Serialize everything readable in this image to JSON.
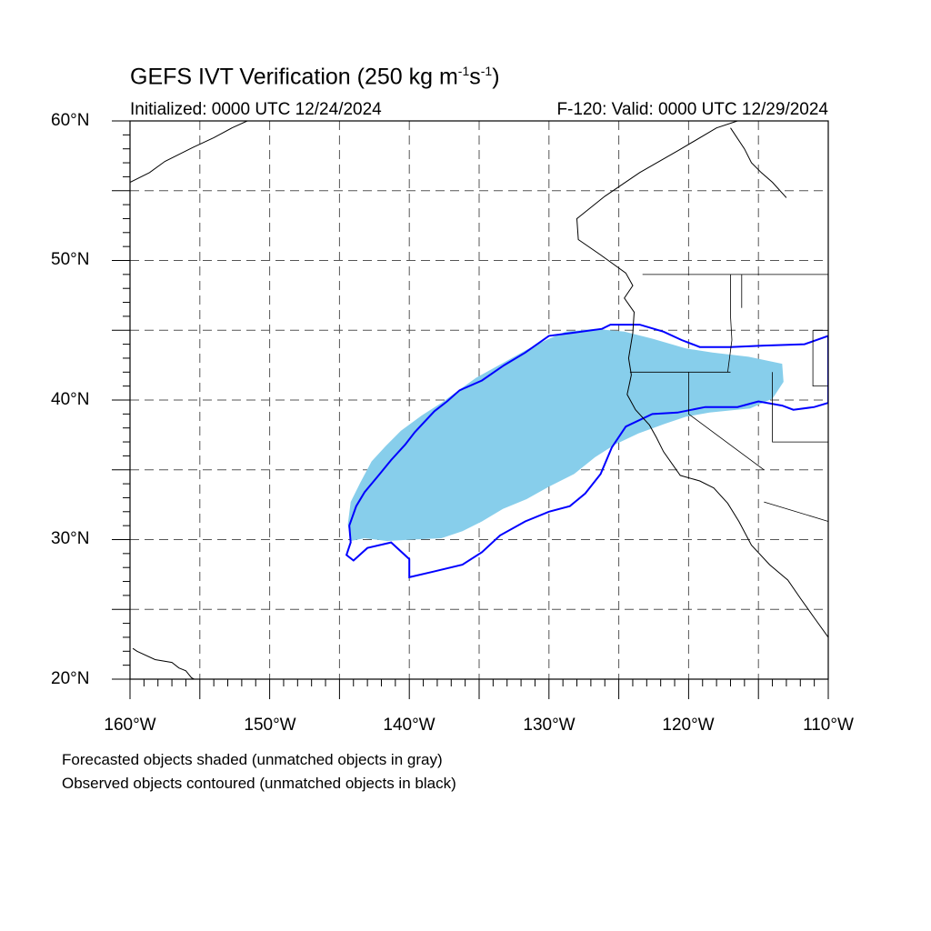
{
  "title": {
    "main": "GEFS IVT Verification (250 kg m",
    "sup1": "-1",
    "mid": "s",
    "sup2": "-1",
    "end": ")"
  },
  "initialized": "Initialized: 0000 UTC 12/24/2024",
  "valid": "F-120: Valid: 0000 UTC 12/29/2024",
  "lat_labels": [
    "60°N",
    "50°N",
    "40°N",
    "30°N",
    "20°N"
  ],
  "lon_labels": [
    "160°W",
    "150°W",
    "140°W",
    "130°W",
    "120°W",
    "110°W"
  ],
  "notes": [
    "Forecasted objects shaded (unmatched objects in gray)",
    "Observed objects contoured (unmatched objects in black)"
  ],
  "colors": {
    "forecast_fill": "#87ceeb",
    "observed_contour": "#0000ff",
    "coastline": "#000000",
    "grid": "#555555"
  },
  "map": {
    "lon_range": [
      -160,
      -110
    ],
    "lat_range": [
      20,
      60
    ],
    "grid_step_deg": 5,
    "grid_style": "dashed",
    "forecast_object": [
      [
        -144.2,
        29.9
      ],
      [
        -143.2,
        30.1
      ],
      [
        -141.6,
        29.9
      ],
      [
        -139.8,
        30.0
      ],
      [
        -137.7,
        30.1
      ],
      [
        -136.2,
        30.6
      ],
      [
        -134.8,
        31.3
      ],
      [
        -133.3,
        32.2
      ],
      [
        -131.6,
        32.9
      ],
      [
        -130.0,
        33.8
      ],
      [
        -128.2,
        34.7
      ],
      [
        -126.7,
        35.9
      ],
      [
        -125.3,
        36.8
      ],
      [
        -123.6,
        37.6
      ],
      [
        -121.7,
        38.3
      ],
      [
        -120.2,
        38.8
      ],
      [
        -118.5,
        39.1
      ],
      [
        -115.6,
        39.4
      ],
      [
        -114.0,
        40.1
      ],
      [
        -113.2,
        41.3
      ],
      [
        -113.3,
        42.6
      ],
      [
        -115.7,
        43.1
      ],
      [
        -118.3,
        43.4
      ],
      [
        -120.2,
        43.7
      ],
      [
        -122.6,
        44.4
      ],
      [
        -124.6,
        44.9
      ],
      [
        -126.7,
        45.1
      ],
      [
        -128.8,
        44.9
      ],
      [
        -130.2,
        44.3
      ],
      [
        -131.6,
        43.6
      ],
      [
        -133.4,
        42.6
      ],
      [
        -135.2,
        41.6
      ],
      [
        -136.6,
        40.6
      ],
      [
        -137.7,
        39.8
      ],
      [
        -139.1,
        38.9
      ],
      [
        -140.6,
        37.8
      ],
      [
        -141.7,
        36.7
      ],
      [
        -142.7,
        35.6
      ],
      [
        -143.5,
        34.1
      ],
      [
        -144.2,
        32.7
      ],
      [
        -144.4,
        31.1
      ]
    ],
    "observed_object": [
      [
        -144.0,
        28.5
      ],
      [
        -143.0,
        29.4
      ],
      [
        -141.3,
        29.8
      ],
      [
        -140.0,
        28.6
      ],
      [
        -140.0,
        27.3
      ],
      [
        -138.3,
        27.7
      ],
      [
        -136.2,
        28.2
      ],
      [
        -134.8,
        29.1
      ],
      [
        -133.5,
        30.3
      ],
      [
        -131.7,
        31.3
      ],
      [
        -130.0,
        32.0
      ],
      [
        -128.5,
        32.4
      ],
      [
        -127.4,
        33.3
      ],
      [
        -126.3,
        34.7
      ],
      [
        -125.5,
        36.6
      ],
      [
        -124.5,
        38.1
      ],
      [
        -122.6,
        39.0
      ],
      [
        -120.8,
        39.1
      ],
      [
        -118.8,
        39.5
      ],
      [
        -116.5,
        39.5
      ],
      [
        -115.0,
        39.9
      ],
      [
        -113.3,
        39.6
      ],
      [
        -112.5,
        39.3
      ],
      [
        -111.0,
        39.5
      ],
      [
        -110.0,
        39.8
      ],
      [
        -110.0,
        44.6
      ],
      [
        -111.7,
        44.0
      ],
      [
        -114.6,
        43.9
      ],
      [
        -117.0,
        43.8
      ],
      [
        -119.2,
        43.8
      ],
      [
        -120.5,
        44.3
      ],
      [
        -121.8,
        44.9
      ],
      [
        -123.5,
        45.4
      ],
      [
        -125.6,
        45.4
      ],
      [
        -126.2,
        45.1
      ],
      [
        -128.4,
        44.8
      ],
      [
        -130.0,
        44.6
      ],
      [
        -131.7,
        43.4
      ],
      [
        -133.2,
        42.5
      ],
      [
        -134.8,
        41.4
      ],
      [
        -136.4,
        40.7
      ],
      [
        -137.3,
        39.9
      ],
      [
        -138.2,
        39.2
      ],
      [
        -139.6,
        37.7
      ],
      [
        -140.3,
        36.8
      ],
      [
        -141.3,
        35.7
      ],
      [
        -142.2,
        34.6
      ],
      [
        -143.2,
        33.4
      ],
      [
        -143.8,
        32.4
      ],
      [
        -144.3,
        31.0
      ],
      [
        -144.2,
        29.8
      ],
      [
        -144.5,
        28.9
      ]
    ],
    "coastline": [
      [
        -155.2,
        19.5
      ],
      [
        -154.8,
        19.7
      ],
      [
        -155.6,
        20.1
      ],
      [
        -156.0,
        20.6
      ],
      [
        -156.5,
        20.8
      ],
      [
        -157.0,
        21.2
      ],
      [
        -158.2,
        21.4
      ],
      [
        -159.5,
        22.0
      ],
      [
        -159.8,
        22.2
      ]
    ],
    "north_america_coast": [
      [
        -116.5,
        60.0
      ],
      [
        -118.0,
        59.5
      ],
      [
        -120.7,
        57.9
      ],
      [
        -123.5,
        56.3
      ],
      [
        -126.0,
        54.6
      ],
      [
        -128.0,
        53.0
      ],
      [
        -127.9,
        51.5
      ],
      [
        -126.3,
        50.4
      ],
      [
        -124.5,
        49.1
      ],
      [
        -124.0,
        48.2
      ],
      [
        -124.6,
        47.3
      ],
      [
        -123.9,
        46.3
      ],
      [
        -124.0,
        44.8
      ],
      [
        -124.3,
        43.0
      ],
      [
        -124.1,
        41.8
      ],
      [
        -124.4,
        40.4
      ],
      [
        -123.8,
        39.3
      ],
      [
        -122.8,
        38.2
      ],
      [
        -122.3,
        37.3
      ],
      [
        -121.8,
        36.3
      ],
      [
        -120.6,
        34.6
      ],
      [
        -119.2,
        34.2
      ],
      [
        -118.2,
        33.7
      ],
      [
        -117.2,
        32.6
      ],
      [
        -116.4,
        31.3
      ],
      [
        -115.5,
        29.6
      ],
      [
        -114.2,
        28.2
      ],
      [
        -112.9,
        27.1
      ],
      [
        -112.0,
        25.8
      ],
      [
        -111.0,
        24.4
      ],
      [
        -110.0,
        23.0
      ]
    ],
    "alaska_coast": [
      [
        -160.0,
        55.6
      ],
      [
        -158.6,
        56.3
      ],
      [
        -157.5,
        57.1
      ],
      [
        -155.5,
        58.1
      ],
      [
        -154.0,
        58.8
      ],
      [
        -152.7,
        59.5
      ],
      [
        -151.6,
        60.0
      ]
    ],
    "mainland_east": [
      [
        -117.0,
        59.5
      ],
      [
        -116.0,
        58.0
      ],
      [
        -115.5,
        57.0
      ],
      [
        -114.8,
        56.3
      ],
      [
        -114.0,
        55.6
      ],
      [
        -113.0,
        54.5
      ]
    ],
    "state_lines": [
      [
        [
          -124.2,
          42.0
        ],
        [
          -120.0,
          42.0
        ],
        [
          -117.0,
          42.0
        ]
      ],
      [
        [
          -120.0,
          42.0
        ],
        [
          -120.0,
          39.0
        ],
        [
          -114.6,
          35.0
        ]
      ],
      [
        [
          -117.0,
          49.0
        ],
        [
          -117.0,
          46.0
        ],
        [
          -116.9,
          44.3
        ],
        [
          -117.2,
          42.0
        ]
      ],
      [
        [
          -123.3,
          49.0
        ],
        [
          -110.0,
          49.0
        ]
      ],
      [
        [
          -116.2,
          49.0
        ],
        [
          -116.2,
          46.6
        ]
      ],
      [
        [
          -114.0,
          42.0
        ],
        [
          -114.0,
          37.0
        ],
        [
          -110.0,
          37.0
        ]
      ],
      [
        [
          -114.6,
          32.7
        ],
        [
          -110.0,
          31.3
        ]
      ],
      [
        [
          -111.1,
          45.0
        ],
        [
          -110.0,
          45.0
        ]
      ],
      [
        [
          -111.1,
          45.0
        ],
        [
          -111.1,
          41.0
        ],
        [
          -110.0,
          41.0
        ]
      ]
    ]
  }
}
